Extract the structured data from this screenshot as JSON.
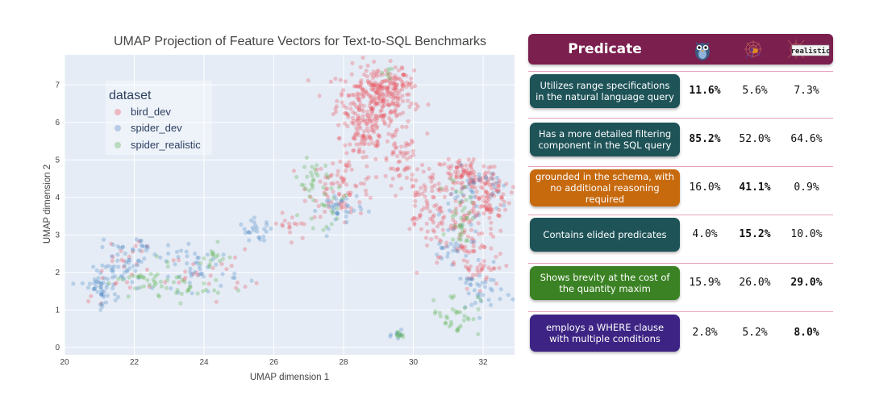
{
  "chart_data": {
    "type": "scatter",
    "title": "UMAP Projection of Feature Vectors for Text-to-SQL Benchmarks",
    "xlabel": "UMAP dimension 1",
    "ylabel": "UMAP dimension 2",
    "xlim": [
      20,
      32.9
    ],
    "ylim": [
      -0.2,
      7.8
    ],
    "xticks": [
      20,
      22,
      24,
      26,
      28,
      30,
      32
    ],
    "yticks": [
      0,
      1,
      2,
      3,
      4,
      5,
      6,
      7
    ],
    "grid": true,
    "legend": {
      "title": "dataset",
      "placement": "top-left",
      "entries": [
        "bird_dev",
        "spider_dev",
        "spider_realistic"
      ]
    },
    "series": [
      {
        "name": "bird_dev",
        "color": "#e8505b",
        "clusters": [
          {
            "cx": 28.9,
            "cy": 6.6,
            "sx": 0.55,
            "sy": 0.45,
            "n": 260
          },
          {
            "cx": 29.4,
            "cy": 7.0,
            "sx": 0.3,
            "sy": 0.2,
            "n": 60
          },
          {
            "cx": 28.6,
            "cy": 5.6,
            "sx": 0.35,
            "sy": 0.35,
            "n": 70
          },
          {
            "cx": 29.6,
            "cy": 4.9,
            "sx": 0.25,
            "sy": 0.4,
            "n": 50
          },
          {
            "cx": 28.0,
            "cy": 4.3,
            "sx": 0.5,
            "sy": 0.4,
            "n": 80
          },
          {
            "cx": 30.3,
            "cy": 4.0,
            "sx": 0.35,
            "sy": 0.5,
            "n": 60
          },
          {
            "cx": 31.5,
            "cy": 4.6,
            "sx": 0.45,
            "sy": 0.25,
            "n": 90
          },
          {
            "cx": 32.1,
            "cy": 4.0,
            "sx": 0.35,
            "sy": 0.35,
            "n": 90
          },
          {
            "cx": 31.0,
            "cy": 3.3,
            "sx": 0.5,
            "sy": 0.4,
            "n": 70
          },
          {
            "cx": 31.8,
            "cy": 2.2,
            "sx": 0.5,
            "sy": 0.45,
            "n": 60
          },
          {
            "cx": 26.5,
            "cy": 3.2,
            "sx": 0.3,
            "sy": 0.25,
            "n": 15
          },
          {
            "cx": 24.0,
            "cy": 2.0,
            "sx": 0.7,
            "sy": 0.3,
            "n": 25
          },
          {
            "cx": 22.0,
            "cy": 2.4,
            "sx": 0.35,
            "sy": 0.3,
            "n": 15
          },
          {
            "cx": 21.3,
            "cy": 1.8,
            "sx": 0.4,
            "sy": 0.3,
            "n": 10
          }
        ]
      },
      {
        "name": "spider_dev",
        "color": "#4d88c4",
        "clusters": [
          {
            "cx": 21.0,
            "cy": 1.6,
            "sx": 0.25,
            "sy": 0.25,
            "n": 45
          },
          {
            "cx": 21.6,
            "cy": 2.2,
            "sx": 0.3,
            "sy": 0.3,
            "n": 40
          },
          {
            "cx": 22.3,
            "cy": 2.6,
            "sx": 0.2,
            "sy": 0.2,
            "n": 15
          },
          {
            "cx": 23.8,
            "cy": 2.1,
            "sx": 0.6,
            "sy": 0.3,
            "n": 50
          },
          {
            "cx": 25.5,
            "cy": 3.1,
            "sx": 0.25,
            "sy": 0.15,
            "n": 25
          },
          {
            "cx": 27.9,
            "cy": 3.7,
            "sx": 0.3,
            "sy": 0.25,
            "n": 35
          },
          {
            "cx": 31.8,
            "cy": 4.2,
            "sx": 0.4,
            "sy": 0.3,
            "n": 40
          },
          {
            "cx": 31.9,
            "cy": 1.5,
            "sx": 0.35,
            "sy": 0.3,
            "n": 35
          },
          {
            "cx": 31.2,
            "cy": 2.7,
            "sx": 0.4,
            "sy": 0.35,
            "n": 30
          },
          {
            "cx": 29.6,
            "cy": 0.35,
            "sx": 0.1,
            "sy": 0.1,
            "n": 8
          }
        ]
      },
      {
        "name": "spider_realistic",
        "color": "#56ae4a",
        "clusters": [
          {
            "cx": 22.3,
            "cy": 1.7,
            "sx": 0.4,
            "sy": 0.25,
            "n": 30
          },
          {
            "cx": 23.5,
            "cy": 1.6,
            "sx": 0.5,
            "sy": 0.2,
            "n": 25
          },
          {
            "cx": 24.3,
            "cy": 2.3,
            "sx": 0.3,
            "sy": 0.2,
            "n": 15
          },
          {
            "cx": 27.1,
            "cy": 4.6,
            "sx": 0.2,
            "sy": 0.3,
            "n": 20
          },
          {
            "cx": 27.4,
            "cy": 3.8,
            "sx": 0.3,
            "sy": 0.3,
            "n": 25
          },
          {
            "cx": 31.4,
            "cy": 3.6,
            "sx": 0.2,
            "sy": 0.5,
            "n": 35
          },
          {
            "cx": 31.2,
            "cy": 0.9,
            "sx": 0.35,
            "sy": 0.3,
            "n": 35
          },
          {
            "cx": 29.6,
            "cy": 0.3,
            "sx": 0.08,
            "sy": 0.08,
            "n": 8
          },
          {
            "cx": 29.3,
            "cy": 7.4,
            "sx": 0.2,
            "sy": 0.1,
            "n": 6
          }
        ]
      }
    ]
  },
  "table": {
    "header": {
      "label": "Predicate",
      "icons": [
        "owl-icon",
        "spider-web-icon",
        "realistic-spider-icon"
      ],
      "icon_text": "realistic"
    },
    "rows": [
      {
        "label": "Utilizes range specifications in the natural language query",
        "color": "#1e5358",
        "values": [
          "11.6%",
          "5.6%",
          "7.3%"
        ],
        "bold_index": 0
      },
      {
        "label": "Has a more detailed filtering component in the SQL query",
        "color": "#1e5358",
        "values": [
          "85.2%",
          "52.0%",
          "64.6%"
        ],
        "bold_index": 0
      },
      {
        "label": "grounded in the schema, with no additional reasoning required",
        "color": "#c7690d",
        "values": [
          "16.0%",
          "41.1%",
          "0.9%"
        ],
        "bold_index": 1
      },
      {
        "label": "Contains elided predicates",
        "color": "#1e5358",
        "values": [
          "4.0%",
          "15.2%",
          "10.0%"
        ],
        "bold_index": 1
      },
      {
        "label": "Shows brevity at the cost of the quantity maxim",
        "color": "#3b8224",
        "values": [
          "15.9%",
          "26.0%",
          "29.0%"
        ],
        "bold_index": 2
      },
      {
        "label": "employs a WHERE clause with multiple conditions",
        "color": "#3d2484",
        "values": [
          "2.8%",
          "5.2%",
          "8.0%"
        ],
        "bold_index": 2
      }
    ]
  }
}
